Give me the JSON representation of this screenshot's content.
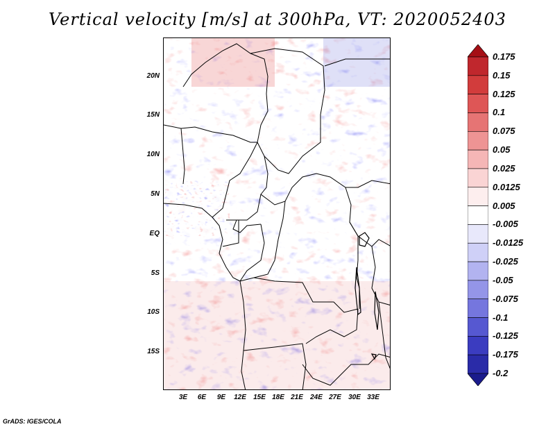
{
  "title": "Vertical velocity [m/s] at 300hPa, VT: 2020052403",
  "credit": "GrADS: IGES/COLA",
  "map": {
    "variable": "Vertical velocity",
    "units": "m/s",
    "level": "300hPa",
    "valid_time": "2020052403",
    "lat_range": [
      -20,
      25
    ],
    "lon_range": [
      0,
      36
    ],
    "lat_labels": [
      "20N",
      "15N",
      "10N",
      "5N",
      "EQ",
      "5S",
      "10S",
      "15S"
    ],
    "lon_labels": [
      "3E",
      "6E",
      "9E",
      "12E",
      "15E",
      "18E",
      "21E",
      "24E",
      "27E",
      "30E",
      "33E"
    ]
  },
  "colorbar": {
    "labels": [
      "0.175",
      "0.15",
      "0.125",
      "0.1",
      "0.075",
      "0.05",
      "0.025",
      "0.0125",
      "0.005",
      "-0.005",
      "-0.0125",
      "-0.025",
      "-0.05",
      "-0.075",
      "-0.1",
      "-0.125",
      "-0.175",
      "-0.2"
    ],
    "colors": [
      "#a50f15",
      "#c0272d",
      "#d23c3c",
      "#de5656",
      "#e67474",
      "#ee9494",
      "#f5b6b6",
      "#fad4d4",
      "#fdeeee",
      "#ffffff",
      "#e8e8fb",
      "#cfd0f7",
      "#b2b3f0",
      "#9495e8",
      "#7576de",
      "#5658d1",
      "#3b3cc0",
      "#2a2ba8",
      "#1a1b8c"
    ]
  }
}
